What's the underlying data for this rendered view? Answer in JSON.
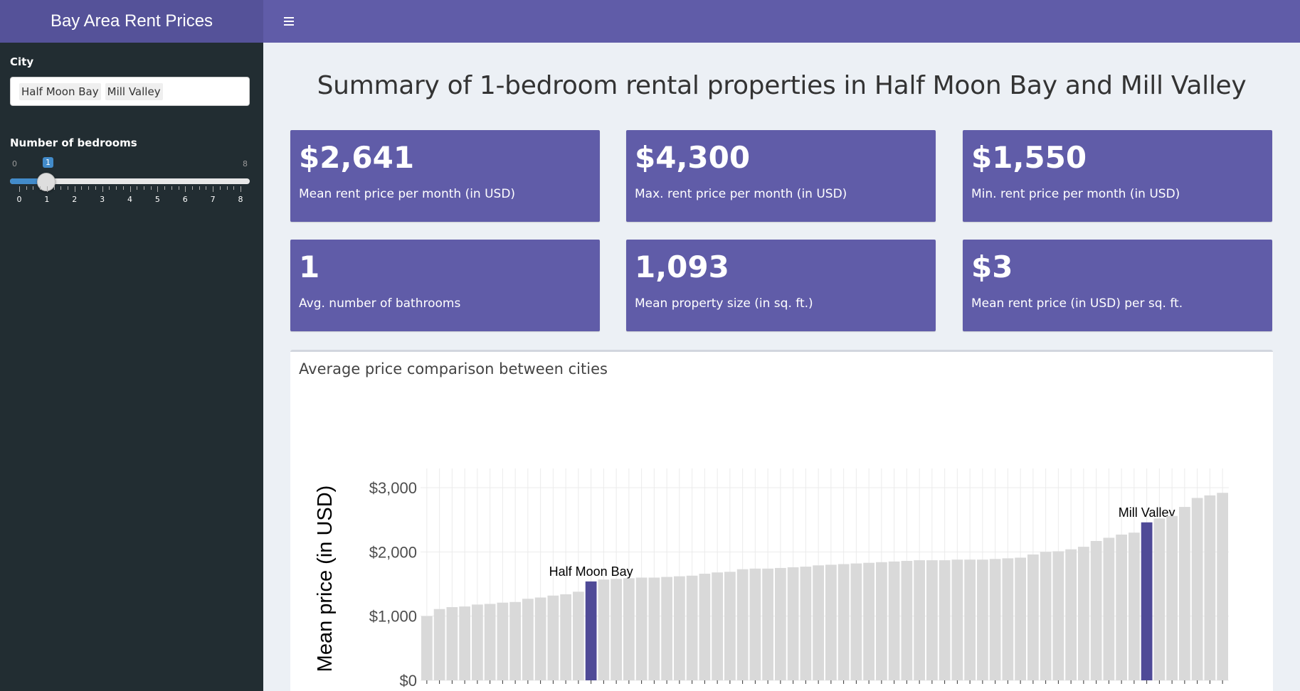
{
  "header": {
    "title": "Bay Area Rent Prices",
    "menu_icon": "hamburger-icon"
  },
  "sidebar": {
    "city_label": "City",
    "cities_selected": [
      "Half Moon Bay",
      "Mill Valley"
    ],
    "bedrooms_label": "Number of bedrooms",
    "slider": {
      "min": "0",
      "max": "8",
      "value": "1",
      "ticks": [
        "0",
        "1",
        "2",
        "3",
        "4",
        "5",
        "6",
        "7",
        "8"
      ]
    }
  },
  "main": {
    "title": "Summary of 1-bedroom rental properties in Half Moon Bay and Mill Valley",
    "value_boxes": [
      {
        "value": "$2,641",
        "label": "Mean rent price per month (in USD)"
      },
      {
        "value": "$4,300",
        "label": "Max. rent price per month (in USD)"
      },
      {
        "value": "$1,550",
        "label": "Min. rent price per month (in USD)"
      },
      {
        "value": "1",
        "label": "Avg. number of bathrooms"
      },
      {
        "value": "1,093",
        "label": "Mean property size (in sq. ft.)"
      },
      {
        "value": "$3",
        "label": "Mean rent price (in USD) per sq. ft."
      }
    ],
    "chart_box_title": "Average price comparison between cities"
  },
  "colors": {
    "accent": "#605ca8",
    "logo_bg": "#555299",
    "sidebar_bg": "#222d32",
    "highlight_bar": "#4f4a97",
    "bar": "#d9d9d9"
  },
  "chart_data": {
    "type": "bar",
    "ylabel": "Mean price (in USD)",
    "ylim": [
      0,
      3000
    ],
    "yticks": [
      "$0",
      "$1,000",
      "$2,000",
      "$3,000"
    ],
    "highlighted": [
      {
        "label": "Half Moon Bay",
        "index": 13
      },
      {
        "label": "Mill Valley",
        "index": 57
      }
    ],
    "values": [
      1000,
      1110,
      1140,
      1150,
      1180,
      1190,
      1210,
      1220,
      1270,
      1290,
      1320,
      1340,
      1380,
      1540,
      1570,
      1580,
      1590,
      1600,
      1600,
      1610,
      1620,
      1630,
      1660,
      1680,
      1690,
      1730,
      1740,
      1740,
      1750,
      1760,
      1770,
      1790,
      1800,
      1810,
      1820,
      1830,
      1840,
      1850,
      1860,
      1870,
      1870,
      1870,
      1880,
      1880,
      1880,
      1890,
      1900,
      1910,
      1960,
      2000,
      2010,
      2040,
      2080,
      2170,
      2220,
      2270,
      2300,
      2460,
      2520,
      2560,
      2700,
      2840,
      2880,
      2920
    ]
  }
}
